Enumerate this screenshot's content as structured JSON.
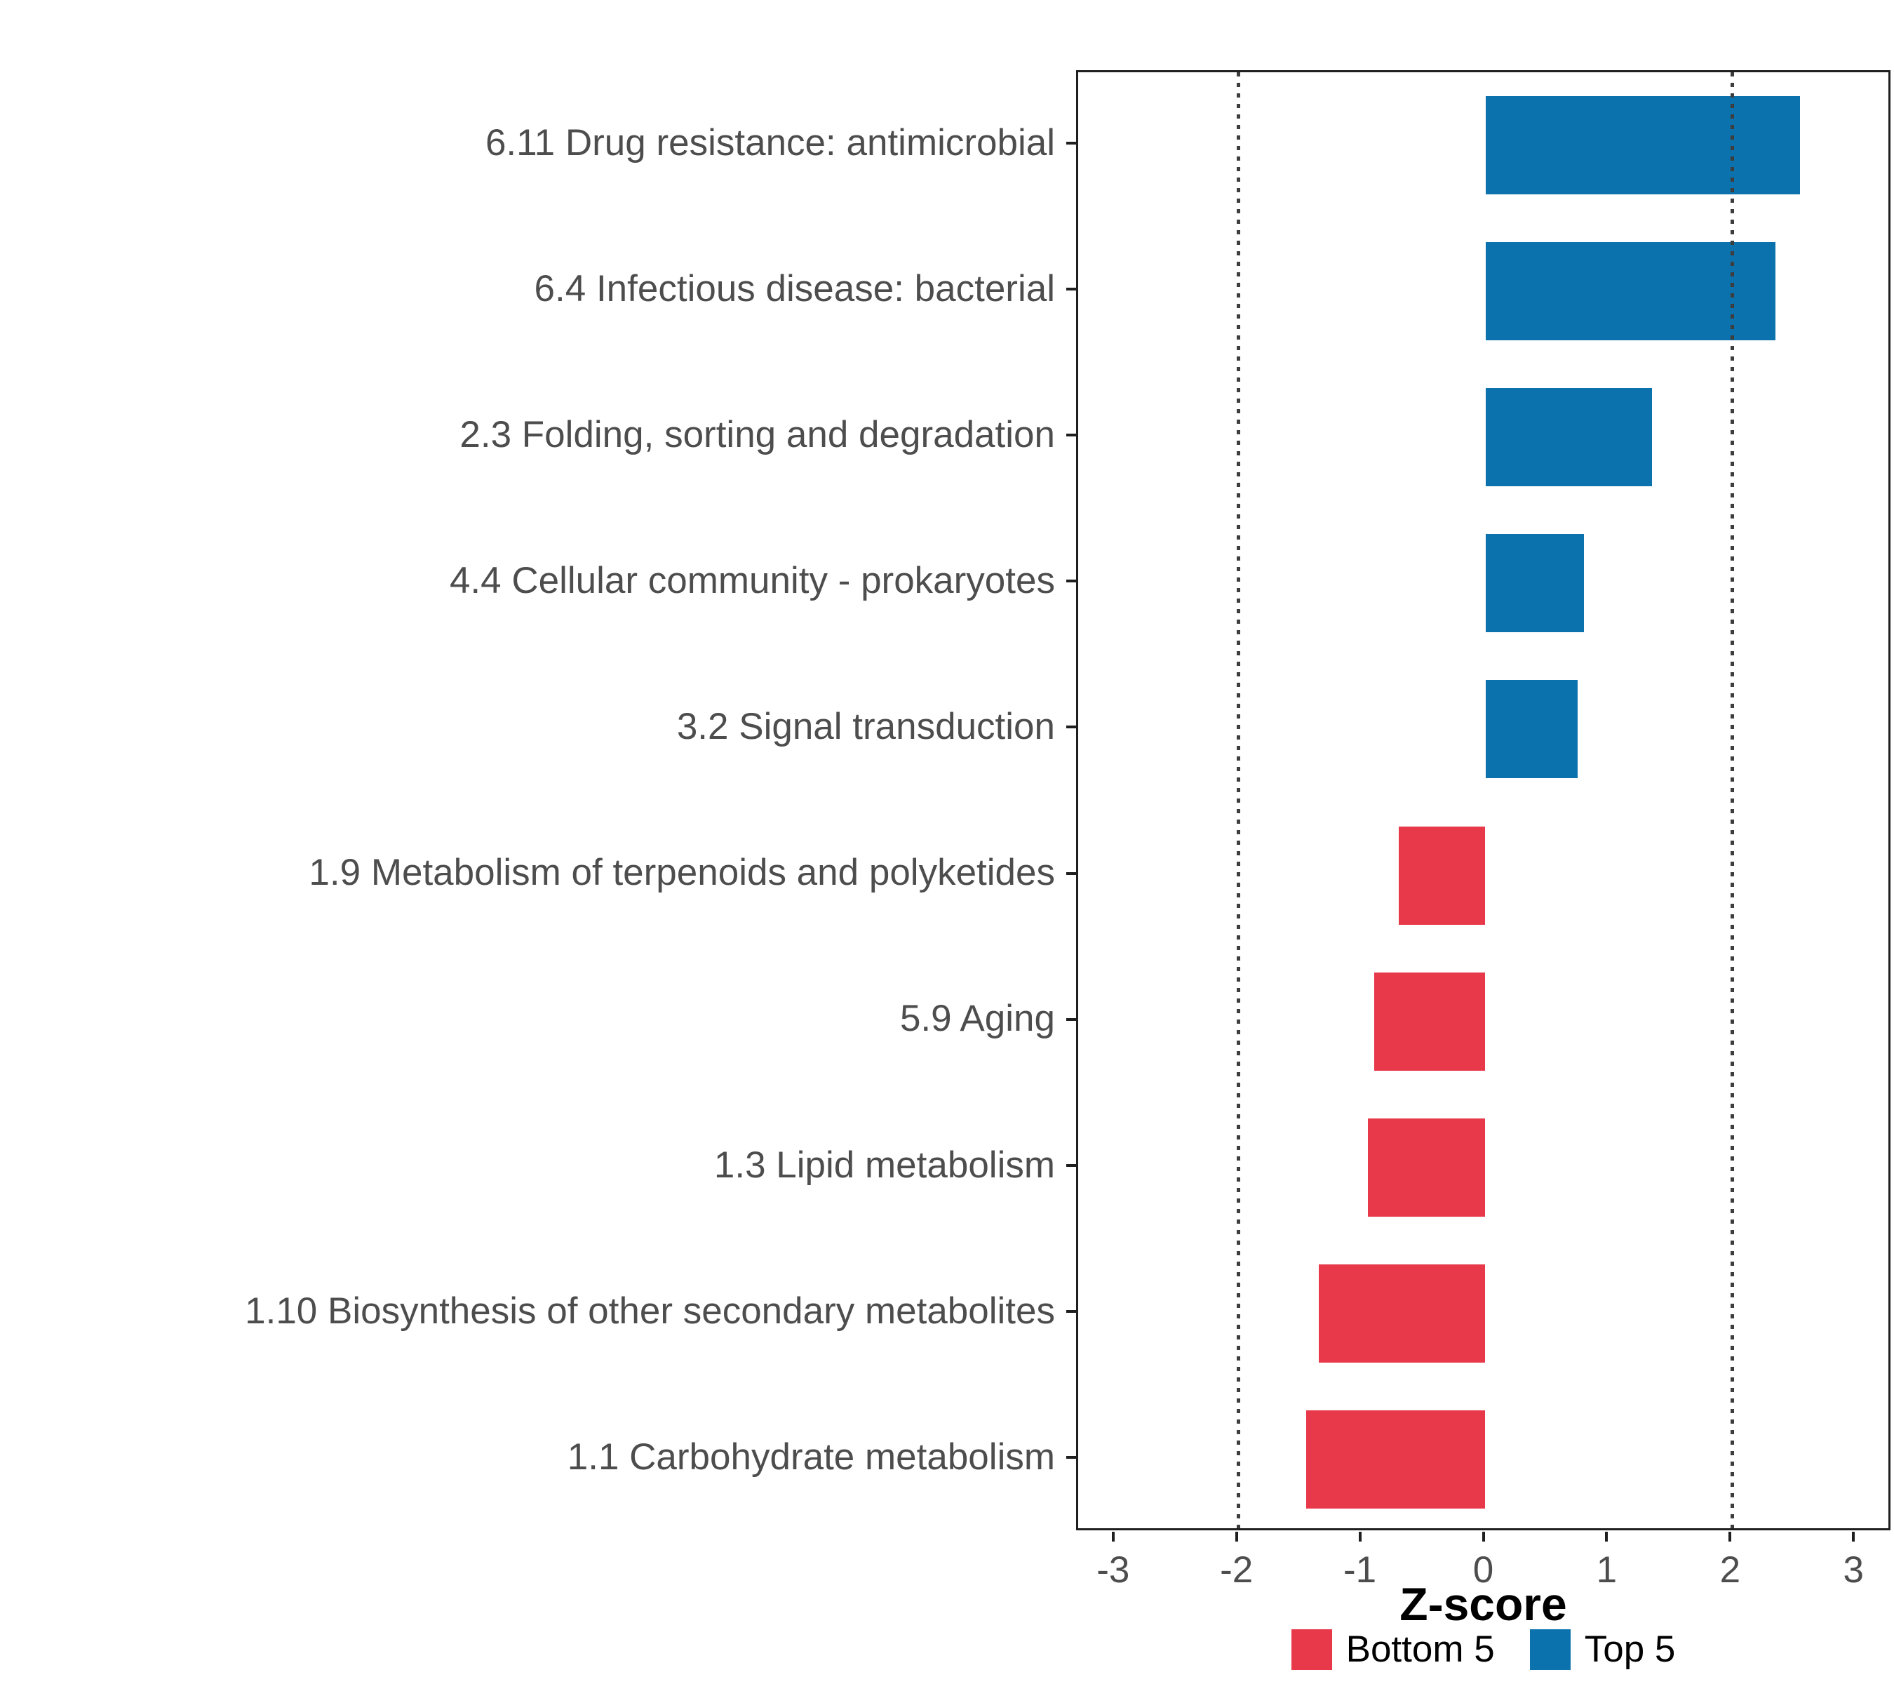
{
  "chart_data": {
    "type": "bar",
    "orientation": "horizontal",
    "title": "",
    "xlabel": "Z-score",
    "ylabel": "",
    "categories": [
      "6.11 Drug resistance: antimicrobial",
      "6.4 Infectious disease: bacterial",
      "2.3 Folding, sorting and degradation",
      "4.4 Cellular community - prokaryotes",
      "3.2 Signal transduction",
      "1.9 Metabolism of terpenoids and polyketides",
      "5.9 Aging",
      "1.3 Lipid metabolism",
      "1.10 Biosynthesis of other secondary metabolites",
      "1.1 Carbohydrate metabolism"
    ],
    "values": [
      2.55,
      2.35,
      1.35,
      0.8,
      0.75,
      -0.7,
      -0.9,
      -0.95,
      -1.35,
      -1.45
    ],
    "groups": [
      "Top 5",
      "Top 5",
      "Top 5",
      "Top 5",
      "Top 5",
      "Bottom 5",
      "Bottom 5",
      "Bottom 5",
      "Bottom 5",
      "Bottom 5"
    ],
    "colors": {
      "Top 5": "#0C72AE",
      "Bottom 5": "#E8394A"
    },
    "x_ticks": [
      -3,
      -2,
      -1,
      0,
      1,
      2,
      3
    ],
    "xlim": [
      -3.3,
      3.3
    ],
    "reference_lines": [
      -2,
      2
    ],
    "grid": "off",
    "legend_position": "bottom",
    "legend": [
      {
        "label": "Bottom 5",
        "color": "#E8394A"
      },
      {
        "label": "Top 5",
        "color": "#0C72AE"
      }
    ]
  }
}
